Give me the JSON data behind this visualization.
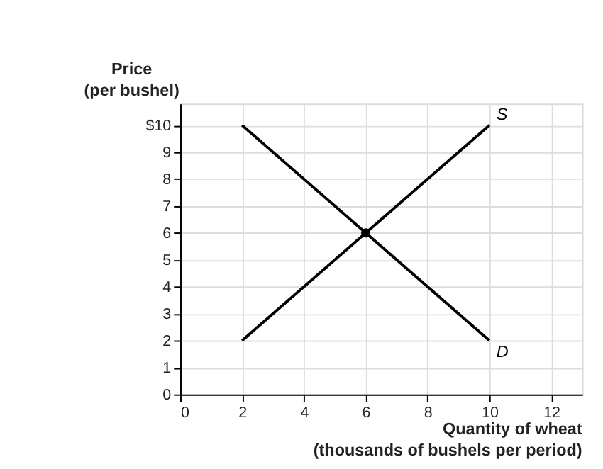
{
  "chart_data": {
    "type": "line",
    "xlabel": "Quantity of wheat\n(thousands of bushels per period)",
    "ylabel": "Price\n(per bushel)",
    "series": [
      {
        "name": "S",
        "color": "#000000",
        "x": [
          2,
          10
        ],
        "values": [
          2,
          10
        ]
      },
      {
        "name": "D",
        "color": "#000000",
        "x": [
          2,
          10
        ],
        "values": [
          10,
          2
        ]
      },
      {
        "type": "scatter",
        "color": "#000000",
        "x": [
          6
        ],
        "values": [
          6
        ],
        "marker": "circle"
      }
    ],
    "xlim": [
      0,
      13
    ],
    "xticks": [
      0,
      2,
      4,
      6,
      8,
      10,
      12
    ],
    "ylim": [
      0,
      10.8
    ],
    "yticks": [
      0,
      1,
      2,
      3,
      4,
      5,
      6,
      7,
      8,
      9,
      {
        "value": 10,
        "label": "$10"
      }
    ],
    "grid": true,
    "marker": "none",
    "line_style": "solid"
  }
}
